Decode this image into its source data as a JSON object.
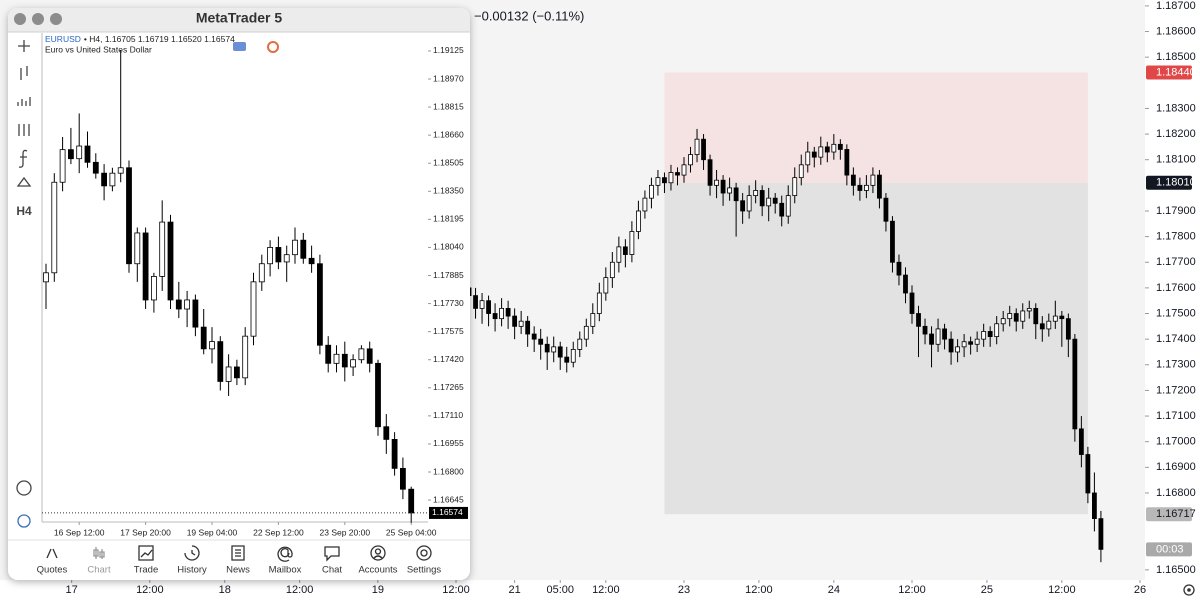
{
  "header": {
    "change": "−0.00132 (−0.11%)"
  },
  "window": {
    "title": "MetaTrader 5",
    "symbol": "EURUSD",
    "symbol_info": "• H4, 1.16705 1.16719 1.16520 1.16574",
    "description": "Euro vs United States Dollar",
    "timeframe": "H4",
    "tabs": [
      "Quotes",
      "Chart",
      "Trade",
      "History",
      "News",
      "Mailbox",
      "Chat",
      "Accounts",
      "Settings"
    ]
  },
  "chart_data": [
    {
      "type": "candlestick",
      "up_color": "#ffffff",
      "down_color": "#000000",
      "ylim": [
        1.16535,
        1.19213
      ],
      "yticks": [
        {
          "value": 1.19125,
          "label": "1.19125"
        },
        {
          "value": 1.1897,
          "label": "1.18970"
        },
        {
          "value": 1.18815,
          "label": "1.18815"
        },
        {
          "value": 1.1866,
          "label": "1.18660"
        },
        {
          "value": 1.18505,
          "label": "1.18505"
        },
        {
          "value": 1.1835,
          "label": "1.18350"
        },
        {
          "value": 1.18195,
          "label": "1.18195"
        },
        {
          "value": 1.1804,
          "label": "1.18040"
        },
        {
          "value": 1.17885,
          "label": "1.17885"
        },
        {
          "value": 1.1773,
          "label": "1.17730"
        },
        {
          "value": 1.17575,
          "label": "1.17575"
        },
        {
          "value": 1.1742,
          "label": "1.17420"
        },
        {
          "value": 1.17265,
          "label": "1.17265"
        },
        {
          "value": 1.1711,
          "label": "1.17110"
        },
        {
          "value": 1.16955,
          "label": "1.16955"
        },
        {
          "value": 1.168,
          "label": "1.16800"
        },
        {
          "value": 1.16645,
          "label": "1.16645"
        }
      ],
      "xticks": [
        {
          "value": 4,
          "label": "16 Sep 12:00"
        },
        {
          "value": 12,
          "label": "17 Sep 20:00"
        },
        {
          "value": 20,
          "label": "19 Sep 04:00"
        },
        {
          "value": 28,
          "label": "22 Sep 12:00"
        },
        {
          "value": 36,
          "label": "23 Sep 20:00"
        },
        {
          "value": 44,
          "label": "25 Sep 04:00"
        }
      ],
      "last": {
        "value": 1.16574,
        "label": "1.16574"
      },
      "candles": [
        [
          1.1785,
          1.1795,
          1.177,
          1.179
        ],
        [
          1.179,
          1.1845,
          1.1785,
          1.184
        ],
        [
          1.184,
          1.1865,
          1.1835,
          1.1858
        ],
        [
          1.1858,
          1.187,
          1.185,
          1.1853
        ],
        [
          1.1853,
          1.1878,
          1.1845,
          1.186
        ],
        [
          1.186,
          1.1868,
          1.1848,
          1.1851
        ],
        [
          1.1851,
          1.1856,
          1.1842,
          1.1845
        ],
        [
          1.1845,
          1.185,
          1.183,
          1.1838
        ],
        [
          1.1838,
          1.1848,
          1.1835,
          1.1845
        ],
        [
          1.1845,
          1.1913,
          1.184,
          1.1848
        ],
        [
          1.1848,
          1.1852,
          1.179,
          1.1795
        ],
        [
          1.1795,
          1.1815,
          1.1785,
          1.1812
        ],
        [
          1.1812,
          1.1815,
          1.177,
          1.1775
        ],
        [
          1.1775,
          1.179,
          1.1768,
          1.1788
        ],
        [
          1.1788,
          1.183,
          1.178,
          1.1818
        ],
        [
          1.1818,
          1.1822,
          1.177,
          1.1775
        ],
        [
          1.1775,
          1.1785,
          1.1765,
          1.177
        ],
        [
          1.177,
          1.178,
          1.176,
          1.1775
        ],
        [
          1.1775,
          1.1778,
          1.1755,
          1.176
        ],
        [
          1.176,
          1.177,
          1.1745,
          1.1748
        ],
        [
          1.1748,
          1.176,
          1.174,
          1.1752
        ],
        [
          1.1752,
          1.1755,
          1.1725,
          1.173
        ],
        [
          1.173,
          1.1745,
          1.1722,
          1.1738
        ],
        [
          1.1738,
          1.1742,
          1.1728,
          1.1732
        ],
        [
          1.1732,
          1.176,
          1.1728,
          1.1755
        ],
        [
          1.1755,
          1.179,
          1.175,
          1.1785
        ],
        [
          1.1785,
          1.18,
          1.178,
          1.1795
        ],
        [
          1.1795,
          1.1808,
          1.1788,
          1.1804
        ],
        [
          1.1804,
          1.181,
          1.1792,
          1.1796
        ],
        [
          1.1796,
          1.1805,
          1.1785,
          1.18
        ],
        [
          1.18,
          1.1815,
          1.1795,
          1.1808
        ],
        [
          1.1808,
          1.1812,
          1.1795,
          1.1798
        ],
        [
          1.1798,
          1.1805,
          1.179,
          1.1795
        ],
        [
          1.1795,
          1.18,
          1.1745,
          1.175
        ],
        [
          1.175,
          1.1755,
          1.1735,
          1.174
        ],
        [
          1.174,
          1.175,
          1.1735,
          1.1745
        ],
        [
          1.1745,
          1.1752,
          1.173,
          1.1738
        ],
        [
          1.1738,
          1.1745,
          1.1733,
          1.1742
        ],
        [
          1.1742,
          1.175,
          1.174,
          1.1748
        ],
        [
          1.1748,
          1.1752,
          1.1735,
          1.174
        ],
        [
          1.174,
          1.1742,
          1.17,
          1.1705
        ],
        [
          1.1705,
          1.1712,
          1.169,
          1.1698
        ],
        [
          1.1698,
          1.1702,
          1.1678,
          1.1682
        ],
        [
          1.1682,
          1.1688,
          1.1665,
          1.16705
        ],
        [
          1.16705,
          1.16719,
          1.1652,
          1.16574
        ]
      ]
    },
    {
      "type": "candlestick",
      "up_color": "#ffffff",
      "down_color": "#000000",
      "xlim": [
        -72,
        103
      ],
      "ylim": [
        1.1648,
        1.18723
      ],
      "yticks": [
        {
          "value": 1.187,
          "label": "1.18700"
        },
        {
          "value": 1.186,
          "label": "1.18600"
        },
        {
          "value": 1.185,
          "label": "1.18500"
        },
        {
          "value": 1.183,
          "label": "1.18300"
        },
        {
          "value": 1.182,
          "label": "1.18200"
        },
        {
          "value": 1.181,
          "label": "1.18100"
        },
        {
          "value": 1.179,
          "label": "1.17900"
        },
        {
          "value": 1.178,
          "label": "1.17800"
        },
        {
          "value": 1.177,
          "label": "1.17700"
        },
        {
          "value": 1.176,
          "label": "1.17600"
        },
        {
          "value": 1.175,
          "label": "1.17500"
        },
        {
          "value": 1.174,
          "label": "1.17400"
        },
        {
          "value": 1.173,
          "label": "1.17300"
        },
        {
          "value": 1.172,
          "label": "1.17200"
        },
        {
          "value": 1.171,
          "label": "1.17100"
        },
        {
          "value": 1.17,
          "label": "1.17000"
        },
        {
          "value": 1.169,
          "label": "1.16900"
        },
        {
          "value": 1.168,
          "label": "1.16800"
        },
        {
          "value": 1.165,
          "label": "1.16500"
        }
      ],
      "xticks": [
        {
          "value": -61,
          "label": "17"
        },
        {
          "value": -49,
          "label": "12:00"
        },
        {
          "value": -37.5,
          "label": "18"
        },
        {
          "value": -26,
          "label": "12:00"
        },
        {
          "value": -14,
          "label": "19"
        },
        {
          "value": -2,
          "label": "12:00"
        },
        {
          "value": 7,
          "label": "21"
        },
        {
          "value": 14,
          "label": "05:00"
        },
        {
          "value": 21,
          "label": "12:00"
        },
        {
          "value": 33,
          "label": "23"
        },
        {
          "value": 44.5,
          "label": "12:00"
        },
        {
          "value": 56,
          "label": "24"
        },
        {
          "value": 68,
          "label": "12:00"
        },
        {
          "value": 79.5,
          "label": "25"
        },
        {
          "value": 91,
          "label": "12:00"
        },
        {
          "value": 103,
          "label": "26"
        }
      ],
      "position": {
        "x_start": 30,
        "x_end": 95,
        "stop": {
          "value": 1.1844,
          "label": "1.18440"
        },
        "entry": {
          "value": 1.1801,
          "label": "1.18010"
        },
        "target": {
          "value": 1.16717,
          "label": "1.16717"
        },
        "stop_color": "#f5e3e3",
        "target_color": "#e2e2e2"
      },
      "countdown": "00:03",
      "candles": [
        [
          1.176,
          1.1764,
          1.1753,
          1.1757
        ],
        [
          1.1757,
          1.176,
          1.1748,
          1.1752
        ],
        [
          1.1752,
          1.1758,
          1.1746,
          1.1755
        ],
        [
          1.1755,
          1.1757,
          1.1745,
          1.175
        ],
        [
          1.175,
          1.1754,
          1.1743,
          1.1748
        ],
        [
          1.1748,
          1.1756,
          1.1745,
          1.1752
        ],
        [
          1.1752,
          1.1755,
          1.1744,
          1.1749
        ],
        [
          1.1749,
          1.1752,
          1.174,
          1.1745
        ],
        [
          1.1745,
          1.1751,
          1.1742,
          1.1747
        ],
        [
          1.1747,
          1.1749,
          1.1737,
          1.1742
        ],
        [
          1.1742,
          1.1745,
          1.1735,
          1.174
        ],
        [
          1.174,
          1.1744,
          1.1732,
          1.1738
        ],
        [
          1.1738,
          1.1741,
          1.1728,
          1.1735
        ],
        [
          1.1735,
          1.1741,
          1.1731,
          1.1737
        ],
        [
          1.1737,
          1.1739,
          1.1728,
          1.1733
        ],
        [
          1.1733,
          1.1737,
          1.1727,
          1.1731
        ],
        [
          1.1731,
          1.1739,
          1.1729,
          1.1736
        ],
        [
          1.1736,
          1.1743,
          1.1733,
          1.174
        ],
        [
          1.174,
          1.1748,
          1.1737,
          1.1745
        ],
        [
          1.1745,
          1.1754,
          1.1742,
          1.175
        ],
        [
          1.175,
          1.1762,
          1.1747,
          1.1758
        ],
        [
          1.1758,
          1.1768,
          1.1755,
          1.1764
        ],
        [
          1.1764,
          1.1774,
          1.176,
          1.177
        ],
        [
          1.177,
          1.178,
          1.1766,
          1.1776
        ],
        [
          1.1776,
          1.1779,
          1.1768,
          1.1773
        ],
        [
          1.1773,
          1.1786,
          1.177,
          1.1782
        ],
        [
          1.1782,
          1.1794,
          1.1779,
          1.179
        ],
        [
          1.179,
          1.1798,
          1.1787,
          1.1795
        ],
        [
          1.1795,
          1.1803,
          1.1791,
          1.18
        ],
        [
          1.18,
          1.1806,
          1.1796,
          1.1803
        ],
        [
          1.1803,
          1.1805,
          1.1797,
          1.1801
        ],
        [
          1.1801,
          1.1808,
          1.1798,
          1.1805
        ],
        [
          1.1805,
          1.1807,
          1.18,
          1.1804
        ],
        [
          1.1804,
          1.1811,
          1.1801,
          1.1808
        ],
        [
          1.1808,
          1.1815,
          1.1805,
          1.1812
        ],
        [
          1.1812,
          1.1822,
          1.1809,
          1.1818
        ],
        [
          1.1818,
          1.182,
          1.1806,
          1.181
        ],
        [
          1.181,
          1.1812,
          1.1796,
          1.18
        ],
        [
          1.18,
          1.1806,
          1.1795,
          1.1802
        ],
        [
          1.1802,
          1.1804,
          1.1792,
          1.1797
        ],
        [
          1.1797,
          1.1803,
          1.1794,
          1.1799
        ],
        [
          1.1799,
          1.1801,
          1.178,
          1.1794
        ],
        [
          1.1794,
          1.1797,
          1.1785,
          1.179
        ],
        [
          1.179,
          1.18,
          1.1787,
          1.1796
        ],
        [
          1.1796,
          1.1802,
          1.1793,
          1.1798
        ],
        [
          1.1798,
          1.18,
          1.1788,
          1.1792
        ],
        [
          1.1792,
          1.1799,
          1.1786,
          1.1795
        ],
        [
          1.1795,
          1.1797,
          1.1789,
          1.1793
        ],
        [
          1.1793,
          1.1796,
          1.1784,
          1.1788
        ],
        [
          1.1788,
          1.18,
          1.1785,
          1.1796
        ],
        [
          1.1796,
          1.1807,
          1.1793,
          1.1803
        ],
        [
          1.1803,
          1.1812,
          1.18,
          1.1808
        ],
        [
          1.1808,
          1.1817,
          1.1805,
          1.1813
        ],
        [
          1.1813,
          1.1815,
          1.1807,
          1.1811
        ],
        [
          1.1811,
          1.1819,
          1.1808,
          1.1815
        ],
        [
          1.1815,
          1.1817,
          1.1809,
          1.1813
        ],
        [
          1.1813,
          1.182,
          1.181,
          1.1816
        ],
        [
          1.1816,
          1.1818,
          1.181,
          1.1814
        ],
        [
          1.1814,
          1.1816,
          1.18,
          1.1804
        ],
        [
          1.1804,
          1.1807,
          1.1796,
          1.18
        ],
        [
          1.18,
          1.1803,
          1.1794,
          1.1798
        ],
        [
          1.1798,
          1.1804,
          1.1795,
          1.18
        ],
        [
          1.18,
          1.1807,
          1.1797,
          1.1804
        ],
        [
          1.1804,
          1.1806,
          1.1791,
          1.1795
        ],
        [
          1.1795,
          1.1797,
          1.1782,
          1.1786
        ],
        [
          1.1786,
          1.1788,
          1.1766,
          1.177
        ],
        [
          1.177,
          1.1773,
          1.1761,
          1.1765
        ],
        [
          1.1765,
          1.1768,
          1.1754,
          1.1758
        ],
        [
          1.1758,
          1.1761,
          1.1746,
          1.175
        ],
        [
          1.175,
          1.1753,
          1.1733,
          1.1745
        ],
        [
          1.1745,
          1.1748,
          1.1738,
          1.1742
        ],
        [
          1.1742,
          1.1745,
          1.1729,
          1.1738
        ],
        [
          1.1738,
          1.1748,
          1.1735,
          1.1744
        ],
        [
          1.1744,
          1.1746,
          1.1736,
          1.174
        ],
        [
          1.174,
          1.1743,
          1.173,
          1.1735
        ],
        [
          1.1735,
          1.174,
          1.1731,
          1.1737
        ],
        [
          1.1737,
          1.1742,
          1.1733,
          1.1739
        ],
        [
          1.1739,
          1.1741,
          1.1734,
          1.1738
        ],
        [
          1.1738,
          1.1743,
          1.1735,
          1.174
        ],
        [
          1.174,
          1.1746,
          1.1737,
          1.1743
        ],
        [
          1.1743,
          1.1745,
          1.1737,
          1.1741
        ],
        [
          1.1741,
          1.1749,
          1.1738,
          1.1746
        ],
        [
          1.1746,
          1.1751,
          1.1743,
          1.1748
        ],
        [
          1.1748,
          1.1753,
          1.1745,
          1.175
        ],
        [
          1.175,
          1.1752,
          1.1743,
          1.1747
        ],
        [
          1.1747,
          1.1754,
          1.1744,
          1.1751
        ],
        [
          1.1751,
          1.1755,
          1.1748,
          1.1752
        ],
        [
          1.1752,
          1.1754,
          1.174,
          1.1746
        ],
        [
          1.1746,
          1.1749,
          1.1739,
          1.1744
        ],
        [
          1.1744,
          1.175,
          1.1741,
          1.1747
        ],
        [
          1.1747,
          1.1755,
          1.1744,
          1.1749
        ],
        [
          1.1749,
          1.1751,
          1.1737,
          1.1748
        ],
        [
          1.1748,
          1.175,
          1.1733,
          1.174
        ],
        [
          1.174,
          1.1742,
          1.17,
          1.1705
        ],
        [
          1.1705,
          1.171,
          1.169,
          1.1695
        ],
        [
          1.1695,
          1.1698,
          1.1676,
          1.168
        ],
        [
          1.168,
          1.1688,
          1.1665,
          1.167
        ],
        [
          1.167,
          1.1673,
          1.1653,
          1.1658
        ]
      ]
    }
  ]
}
